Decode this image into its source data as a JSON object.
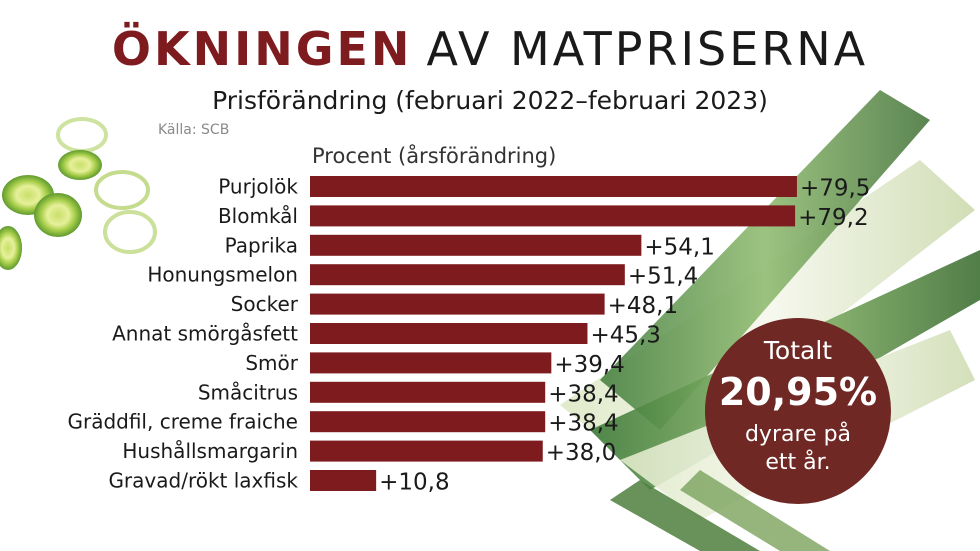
{
  "header": {
    "title_bold": "ÖKNINGEN",
    "title_rest": "AV MATPRISERNA",
    "subtitle": "Prisförändring (februari 2022–februari 2023)",
    "source": "Källa: SCB"
  },
  "chart_data": {
    "type": "bar",
    "orientation": "horizontal",
    "ylabel": "Procent (årsförändring)",
    "categories": [
      "Purjolök",
      "Blomkål",
      "Paprika",
      "Honungsmelon",
      "Socker",
      "Annat smörgåsfett",
      "Smör",
      "Småcitrus",
      "Gräddfil, creme fraiche",
      "Hushållsmargarin",
      "Gravad/rökt laxfisk"
    ],
    "values": [
      79.5,
      79.2,
      54.1,
      51.4,
      48.1,
      45.3,
      39.4,
      38.4,
      38.4,
      38.0,
      10.8
    ],
    "labels": [
      "+79,5",
      "+79,2",
      "+54,1",
      "+51,4",
      "+48,1",
      "+45,3",
      "+39,4",
      "+38,4",
      "+38,4",
      "+38,0",
      "+10,8"
    ],
    "xlim": [
      0,
      80
    ],
    "grid": false,
    "legend": "none",
    "bar_color": "#7d1b1f"
  },
  "badge": {
    "line1": "Totalt",
    "line2": "20,95%",
    "line3": "dyrare på",
    "line4": "ett år."
  },
  "colors": {
    "accent": "#7d1b1f",
    "badge": "#6f2824"
  }
}
